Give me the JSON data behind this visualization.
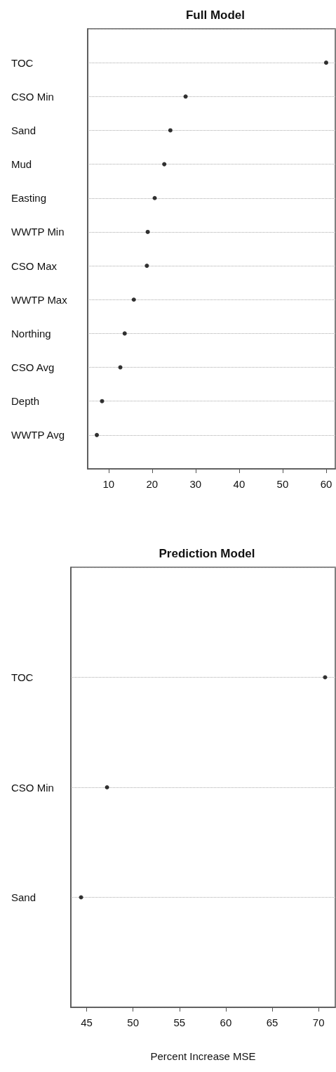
{
  "chart_data": [
    {
      "type": "scatter",
      "title": "Full Model",
      "orientation": "horizontal",
      "categories": [
        "TOC",
        "CSO Min",
        "Sand",
        "Mud",
        "Easting",
        "WWTP Min",
        "CSO Max",
        "WWTP Max",
        "Northing",
        "CSO Avg",
        "Depth",
        "WWTP Avg"
      ],
      "values": [
        60.0,
        27.7,
        24.2,
        22.8,
        20.6,
        19.0,
        18.8,
        15.8,
        13.7,
        12.7,
        8.5,
        7.3
      ],
      "color": "#000000",
      "marker": "circle",
      "grid": "y",
      "xlim": [
        5.2,
        62.1
      ],
      "xticks": [
        10,
        20,
        30,
        40,
        50,
        60
      ]
    },
    {
      "type": "scatter",
      "title": "Prediction Model",
      "orientation": "horizontal",
      "categories": [
        "TOC",
        "CSO Min",
        "Sand"
      ],
      "values": [
        70.7,
        47.2,
        44.4
      ],
      "color": "#000000",
      "marker": "circle",
      "grid": "y",
      "xlim": [
        43.3,
        71.8
      ],
      "xticks": [
        45,
        50,
        55,
        60,
        65,
        70
      ],
      "xlabel": "Percent Increase MSE"
    }
  ]
}
